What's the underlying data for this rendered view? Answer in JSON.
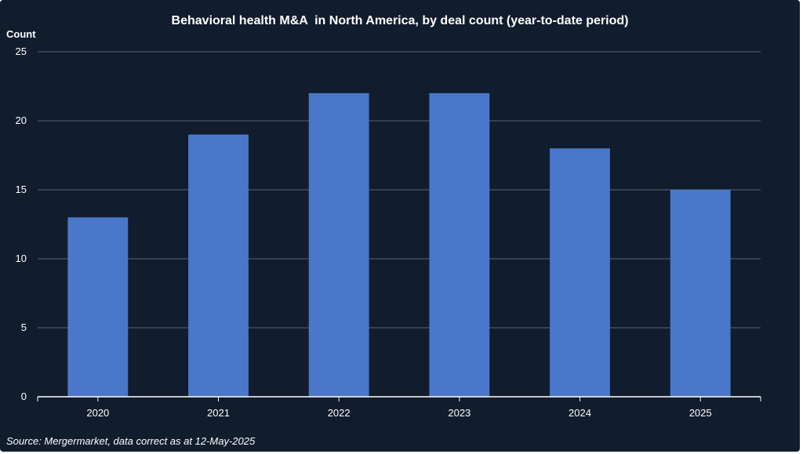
{
  "chart_data": {
    "type": "bar",
    "title": "Behavioral health M&A  in North America, by deal count (year-to-date period)",
    "ylabel": "Count",
    "xlabel": "",
    "categories": [
      "2020",
      "2021",
      "2022",
      "2023",
      "2024",
      "2025"
    ],
    "values": [
      13,
      19,
      22,
      22,
      18,
      15
    ],
    "ylim": [
      0,
      25
    ],
    "yticks": [
      "0",
      "5",
      "10",
      "15",
      "20",
      "25"
    ],
    "grid": true,
    "bar_color": "#4a77c9",
    "background_color": "#111c2d",
    "source": "Source: Mergermarket, data correct as at 12-May-2025"
  }
}
